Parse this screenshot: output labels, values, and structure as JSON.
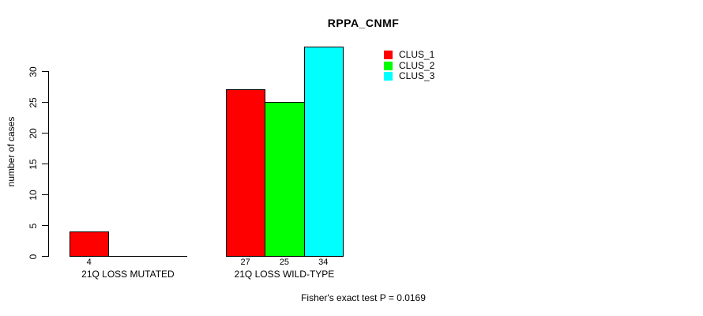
{
  "title": "RPPA_CNMF",
  "footnote": "Fisher's exact test P = 0.0169",
  "legend": {
    "items": [
      {
        "label": "CLUS_1",
        "color": "#FF0000"
      },
      {
        "label": "CLUS_2",
        "color": "#00FF00"
      },
      {
        "label": "CLUS_3",
        "color": "#00FFFF"
      }
    ]
  },
  "colors": {
    "axis": "#000000",
    "background": "#FFFFFF",
    "clus_1": "#FF0000",
    "clus_2": "#00FF00",
    "clus_3": "#00FFFF"
  },
  "chart_data": {
    "type": "bar",
    "title": "RPPA_CNMF",
    "xlabel": "",
    "ylabel": "number of cases",
    "categories": [
      "21Q LOSS MUTATED",
      "21Q LOSS WILD-TYPE"
    ],
    "series": [
      {
        "name": "CLUS_1",
        "color": "#FF0000",
        "values": [
          4,
          27
        ]
      },
      {
        "name": "CLUS_2",
        "color": "#00FF00",
        "values": [
          0,
          25
        ]
      },
      {
        "name": "CLUS_3",
        "color": "#00FFFF",
        "values": [
          0,
          34
        ]
      }
    ],
    "bar_value_labels": [
      [
        "4",
        "",
        ""
      ],
      [
        "27",
        "25",
        "34"
      ]
    ],
    "yticks": [
      0,
      5,
      10,
      15,
      20,
      25,
      30
    ],
    "ylim": [
      0,
      34
    ],
    "grid": false,
    "legend_position": "top-right-inside",
    "annotation": "Fisher's exact test P = 0.0169"
  }
}
